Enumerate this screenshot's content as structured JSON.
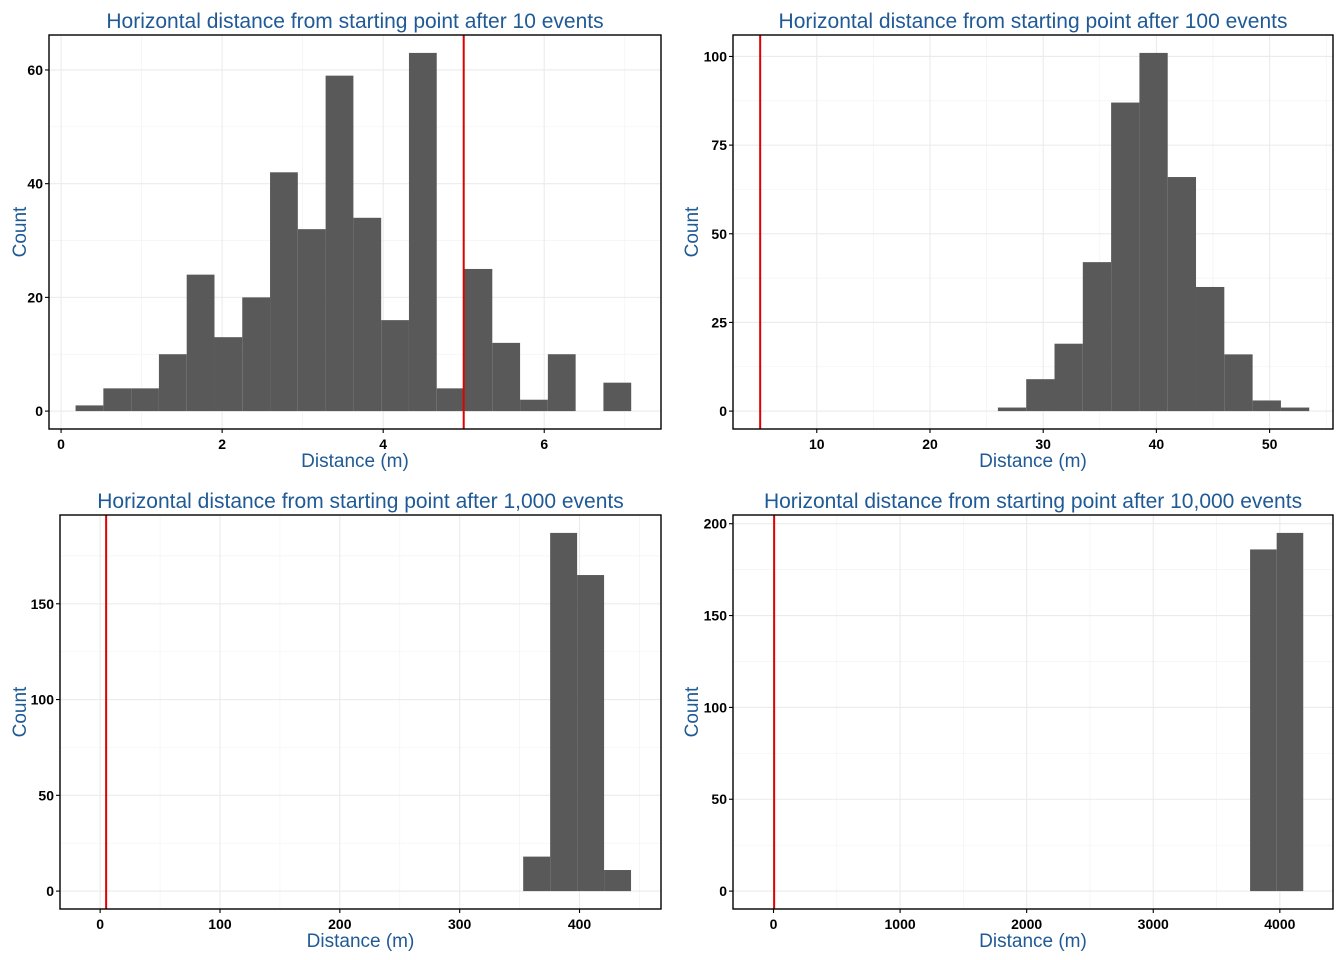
{
  "chart_data": [
    {
      "type": "bar",
      "title": "Horizontal distance from starting point after 10 events",
      "xlabel": "Distance (m)",
      "ylabel": "Count",
      "xlim": [
        -0.15,
        7.45
      ],
      "ylim": [
        -3.15,
        66.15
      ],
      "x_ticks": [
        0,
        2,
        4,
        6
      ],
      "x_tick_labels": [
        "0",
        "2",
        "4",
        "6"
      ],
      "y_ticks": [
        0,
        20,
        40,
        60
      ],
      "y_tick_labels": [
        "0",
        "20",
        "40",
        "60"
      ],
      "bin_width": 0.345,
      "bin_starts": [
        0.18,
        0.525,
        0.87,
        1.215,
        1.56,
        1.905,
        2.25,
        2.595,
        2.94,
        3.285,
        3.63,
        3.975,
        4.32,
        4.665,
        5.01,
        5.355,
        5.7,
        6.045,
        6.39,
        6.735
      ],
      "values": [
        1,
        4,
        4,
        10,
        24,
        13,
        20,
        42,
        32,
        59,
        34,
        16,
        63,
        4,
        25,
        12,
        2,
        10,
        0,
        5
      ],
      "reference_line_x": 5,
      "bar_color": "#595959",
      "reference_line_color": "#e00000",
      "grid": true
    },
    {
      "type": "bar",
      "title": "Horizontal distance from starting point after 100 events",
      "xlabel": "Distance (m)",
      "ylabel": "Count",
      "xlim": [
        2.6,
        55.6
      ],
      "ylim": [
        -5.05,
        106.05
      ],
      "x_ticks": [
        10,
        20,
        30,
        40,
        50
      ],
      "x_tick_labels": [
        "10",
        "20",
        "30",
        "40",
        "50"
      ],
      "y_ticks": [
        0,
        25,
        50,
        75,
        100
      ],
      "y_tick_labels": [
        "0",
        "25",
        "50",
        "75",
        "100"
      ],
      "bin_width": 2.5,
      "bin_starts": [
        26.0,
        28.5,
        31.0,
        33.5,
        36.0,
        38.5,
        41.0,
        43.5,
        46.0,
        48.5,
        51.0
      ],
      "values": [
        1,
        9,
        19,
        42,
        87,
        101,
        66,
        35,
        16,
        3,
        1
      ],
      "reference_line_x": 5,
      "bar_color": "#595959",
      "reference_line_color": "#e00000",
      "grid": true
    },
    {
      "type": "bar",
      "title": "Horizontal distance from starting point after 1,000 events",
      "xlabel": "Distance (m)",
      "ylabel": "Count",
      "xlim": [
        -33.5,
        468
      ],
      "ylim": [
        -9.35,
        196.35
      ],
      "x_ticks": [
        0,
        100,
        200,
        300,
        400
      ],
      "x_tick_labels": [
        "0",
        "100",
        "200",
        "300",
        "400"
      ],
      "y_ticks": [
        0,
        50,
        100,
        150
      ],
      "y_tick_labels": [
        "0",
        "50",
        "100",
        "150"
      ],
      "bin_width": 22.5,
      "bin_starts": [
        353.0,
        375.5,
        398.0,
        420.5
      ],
      "values": [
        18,
        187,
        165,
        11
      ],
      "reference_line_x": 5,
      "bar_color": "#595959",
      "reference_line_color": "#e00000",
      "grid": true
    },
    {
      "type": "bar",
      "title": "Horizontal distance from starting point after 10,000 events",
      "xlabel": "Distance (m)",
      "ylabel": "Count",
      "xlim": [
        -320,
        4420
      ],
      "ylim": [
        -9.75,
        204.75
      ],
      "x_ticks": [
        0,
        1000,
        2000,
        3000,
        4000
      ],
      "x_tick_labels": [
        "0",
        "1000",
        "2000",
        "3000",
        "4000"
      ],
      "y_ticks": [
        0,
        50,
        100,
        150,
        200
      ],
      "y_tick_labels": [
        "0",
        "50",
        "100",
        "150",
        "200"
      ],
      "bin_width": 210,
      "bin_starts": [
        3765,
        3975
      ],
      "values": [
        186,
        195
      ],
      "reference_line_x": 5,
      "bar_color": "#595959",
      "reference_line_color": "#e00000",
      "grid": true
    }
  ]
}
